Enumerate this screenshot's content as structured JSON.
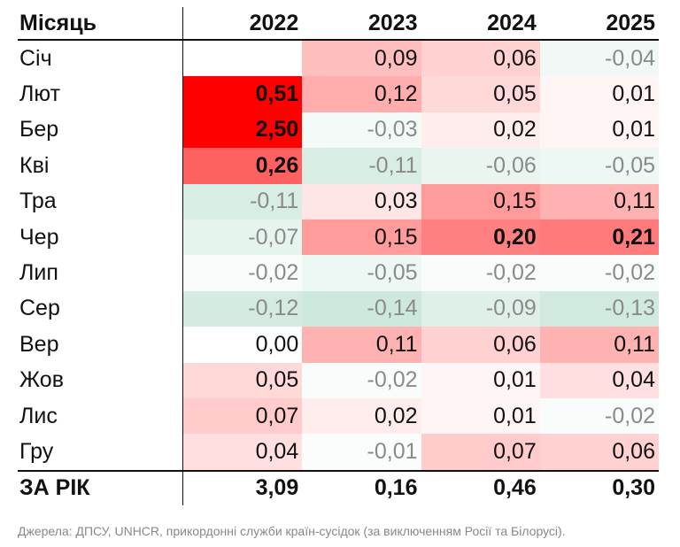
{
  "chart_data": {
    "type": "table",
    "columns": [
      "Місяць",
      "2022",
      "2023",
      "2024",
      "2025"
    ],
    "rows": [
      {
        "month": "Січ",
        "values": [
          null,
          0.09,
          0.06,
          -0.04
        ],
        "labels": [
          "",
          "0,09",
          "0,06",
          "-0,04"
        ]
      },
      {
        "month": "Лют",
        "values": [
          0.51,
          0.12,
          0.05,
          0.01
        ],
        "labels": [
          "0,51",
          "0,12",
          "0,05",
          "0,01"
        ]
      },
      {
        "month": "Бер",
        "values": [
          2.5,
          -0.03,
          0.02,
          0.01
        ],
        "labels": [
          "2,50",
          "-0,03",
          "0,02",
          "0,01"
        ]
      },
      {
        "month": "Кві",
        "values": [
          0.26,
          -0.11,
          -0.06,
          -0.05
        ],
        "labels": [
          "0,26",
          "-0,11",
          "-0,06",
          "-0,05"
        ]
      },
      {
        "month": "Тра",
        "values": [
          -0.11,
          0.03,
          0.15,
          0.11
        ],
        "labels": [
          "-0,11",
          "0,03",
          "0,15",
          "0,11"
        ]
      },
      {
        "month": "Чер",
        "values": [
          -0.07,
          0.15,
          0.2,
          0.21
        ],
        "labels": [
          "-0,07",
          "0,15",
          "0,20",
          "0,21"
        ]
      },
      {
        "month": "Лип",
        "values": [
          -0.02,
          -0.05,
          -0.02,
          -0.02
        ],
        "labels": [
          "-0,02",
          "-0,05",
          "-0,02",
          "-0,02"
        ]
      },
      {
        "month": "Сер",
        "values": [
          -0.12,
          -0.14,
          -0.09,
          -0.13
        ],
        "labels": [
          "-0,12",
          "-0,14",
          "-0,09",
          "-0,13"
        ]
      },
      {
        "month": "Вер",
        "values": [
          0.0,
          0.11,
          0.06,
          0.11
        ],
        "labels": [
          "0,00",
          "0,11",
          "0,06",
          "0,11"
        ]
      },
      {
        "month": "Жов",
        "values": [
          0.05,
          -0.02,
          0.01,
          0.04
        ],
        "labels": [
          "0,05",
          "-0,02",
          "0,01",
          "0,04"
        ]
      },
      {
        "month": "Лис",
        "values": [
          0.07,
          0.02,
          0.01,
          -0.02
        ],
        "labels": [
          "0,07",
          "0,02",
          "0,01",
          "-0,02"
        ]
      },
      {
        "month": "Гру",
        "values": [
          0.04,
          -0.01,
          0.07,
          0.06
        ],
        "labels": [
          "0,04",
          "-0,01",
          "0,07",
          "0,06"
        ]
      }
    ],
    "total": {
      "label": "ЗА РІК",
      "values": [
        3.09,
        0.16,
        0.46,
        0.3
      ],
      "labels": [
        "3,09",
        "0,16",
        "0,46",
        "0,30"
      ]
    },
    "bold_labels": [
      {
        "row": 1,
        "col": 0
      },
      {
        "row": 2,
        "col": 0
      },
      {
        "row": 3,
        "col": 0
      },
      {
        "row": 5,
        "col": 2
      },
      {
        "row": 5,
        "col": 3
      }
    ]
  },
  "colors": {
    "positive": "#ff0000",
    "negative": "#c8e6d7",
    "negative_text": "#8a8a8a",
    "text": "#111111"
  },
  "source": "Джерела: ДПСУ, UNHCR, прикордонні служби країн-сусідок (за виключенням Росії та Білорусі)."
}
